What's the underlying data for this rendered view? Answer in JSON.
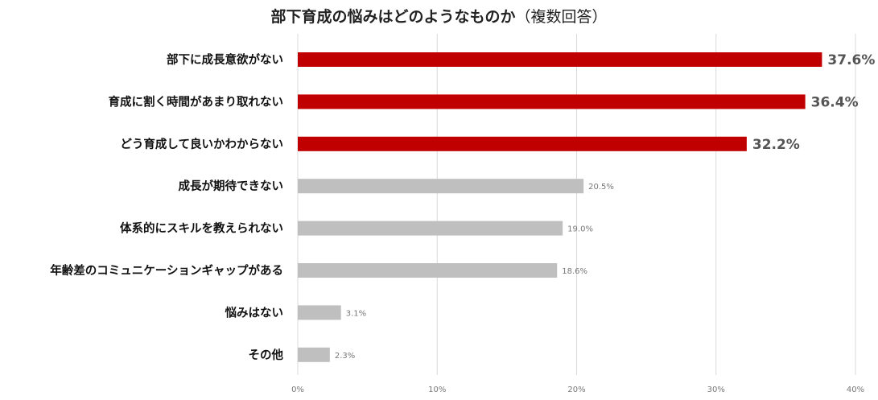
{
  "chart_data": {
    "type": "bar",
    "orientation": "horizontal",
    "title": "部下育成の悩みはどのようなものか",
    "subtitle": "（複数回答）",
    "categories": [
      "部下に成長意欲がない",
      "育成に割く時間があまり取れない",
      "どう育成して良いかわからない",
      "成長が期待できない",
      "体系的にスキルを教えられない",
      "年齢差のコミュニケーションギャップがある",
      "悩みはない",
      "その他"
    ],
    "values": [
      37.6,
      36.4,
      32.2,
      20.5,
      19.0,
      18.6,
      3.1,
      2.3
    ],
    "value_labels": [
      "37.6%",
      "36.4%",
      "32.2%",
      "20.5%",
      "19.0%",
      "18.6%",
      "3.1%",
      "2.3%"
    ],
    "highlight_count": 3,
    "xlim": [
      0,
      40
    ],
    "xticks": [
      0,
      10,
      20,
      30,
      40
    ],
    "xtick_labels": [
      "0%",
      "10%",
      "20%",
      "30%",
      "40%"
    ],
    "grid": "vertical",
    "colors": {
      "highlight": "#c00000",
      "normal": "#bfbfbf",
      "grid": "#d9d9d9"
    }
  }
}
